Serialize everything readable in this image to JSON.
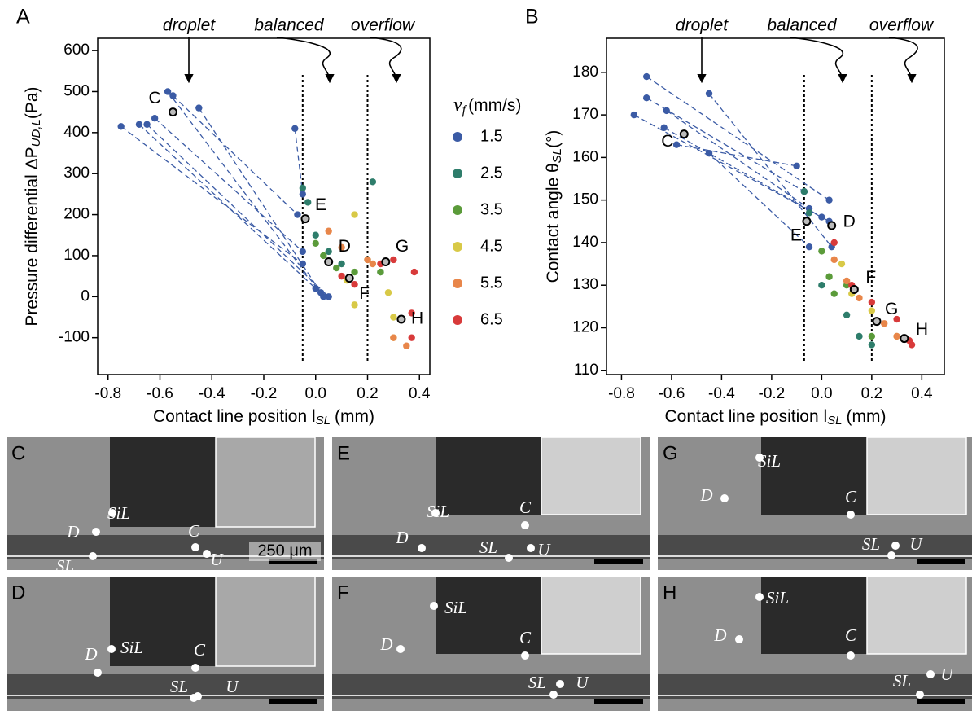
{
  "chart_data": [
    {
      "type": "scatter",
      "panel": "A",
      "xlabel": "Contact line position l",
      "xlabel_sub": "SL",
      "xlabel_unit": "(mm)",
      "ylabel": "Pressure differential ΔP",
      "ylabel_sub": "UD,L",
      "ylabel_unit": "(Pa)",
      "annotations": [
        "droplet",
        "balanced",
        "overflow"
      ],
      "vlines": [
        -0.05,
        0.2
      ],
      "xlim": [
        -0.84,
        0.44
      ],
      "xticks": [
        -0.8,
        -0.6,
        -0.4,
        -0.2,
        {
          "value": 0,
          "label": "0.0"
        },
        0.2,
        0.4
      ],
      "ylim": [
        -190,
        630
      ],
      "yticks": [
        -100,
        0,
        100,
        200,
        300,
        400,
        500,
        600
      ],
      "legend": {
        "title": "v",
        "title_sub": "f",
        "title_unit": "(mm/s)"
      },
      "series": [
        {
          "name": "1.5",
          "color": "#3b5ba5",
          "connect": "pairs",
          "x": [
            -0.75,
            -0.05,
            -0.68,
            0.0,
            -0.65,
            0.05,
            -0.62,
            -0.05,
            -0.57,
            0.03,
            -0.55,
            -0.07,
            -0.45,
            0.02,
            -0.08,
            -0.05
          ],
          "values": [
            415,
            80,
            420,
            20,
            420,
            0,
            435,
            110,
            500,
            0,
            490,
            200,
            460,
            10,
            410,
            250
          ]
        },
        {
          "name": "2.5",
          "color": "#2e7d6b",
          "x": [
            -0.05,
            -0.03,
            0.0,
            0.05,
            0.1,
            0.22,
            0.25
          ],
          "values": [
            265,
            230,
            150,
            110,
            80,
            280,
            60
          ]
        },
        {
          "name": "3.5",
          "color": "#5b9b3a",
          "x": [
            0.0,
            0.03,
            0.08,
            0.15,
            0.25,
            0.2
          ],
          "values": [
            130,
            100,
            70,
            60,
            60,
            90
          ]
        },
        {
          "name": "4.5",
          "color": "#d8c947",
          "x": [
            0.12,
            0.15,
            0.15,
            0.3,
            0.3,
            0.28
          ],
          "values": [
            40,
            200,
            -20,
            -50,
            -100,
            10
          ]
        },
        {
          "name": "5.5",
          "color": "#e8864a",
          "x": [
            0.05,
            0.1,
            0.2,
            0.3,
            0.35,
            0.22
          ],
          "values": [
            160,
            120,
            90,
            -100,
            -120,
            80
          ]
        },
        {
          "name": "6.5",
          "color": "#d83a3a",
          "x": [
            0.1,
            0.15,
            0.25,
            0.3,
            0.38,
            0.37,
            0.37
          ],
          "values": [
            50,
            30,
            80,
            90,
            60,
            -40,
            -100
          ]
        }
      ],
      "highlights": [
        {
          "label": "C",
          "x": -0.55,
          "y": 450
        },
        {
          "label": "E",
          "x": -0.04,
          "y": 190
        },
        {
          "label": "D",
          "x": 0.05,
          "y": 85
        },
        {
          "label": "G",
          "x": 0.27,
          "y": 85
        },
        {
          "label": "F",
          "x": 0.13,
          "y": 45
        },
        {
          "label": "H",
          "x": 0.33,
          "y": -55
        }
      ]
    },
    {
      "type": "scatter",
      "panel": "B",
      "xlabel": "Contact line position l",
      "xlabel_sub": "SL",
      "xlabel_unit": "(mm)",
      "ylabel": "Contact angle  θ",
      "ylabel_sub": "SL",
      "ylabel_unit": "(°)",
      "annotations": [
        "droplet",
        "balanced",
        "overflow"
      ],
      "vlines": [
        -0.07,
        0.2
      ],
      "xlim": [
        -0.86,
        0.49
      ],
      "xticks": [
        -0.8,
        -0.6,
        -0.4,
        -0.2,
        {
          "value": 0,
          "label": "0.0"
        },
        0.2,
        0.4
      ],
      "ylim": [
        109,
        188
      ],
      "yticks": [
        110,
        120,
        130,
        140,
        150,
        160,
        170,
        180
      ],
      "series": [
        {
          "color": "#3b5ba5",
          "connect": "pairs",
          "x": [
            -0.75,
            0.03,
            -0.7,
            0.03,
            -0.7,
            -0.07,
            -0.63,
            0.0,
            -0.62,
            -0.05,
            -0.45,
            0.04,
            -0.58,
            -0.1,
            -0.45,
            -0.05
          ],
          "values": [
            170,
            145,
            179,
            150,
            174,
            152,
            167,
            146,
            171,
            148,
            175,
            139,
            163,
            158,
            161,
            139
          ]
        },
        {
          "color": "#2e7d6b",
          "x": [
            -0.07,
            -0.05,
            0.0,
            0.1,
            0.15,
            0.2
          ],
          "values": [
            152,
            147,
            130,
            123,
            118,
            116
          ]
        },
        {
          "color": "#5b9b3a",
          "x": [
            0.0,
            0.03,
            0.05,
            0.1,
            0.2
          ],
          "values": [
            138,
            132,
            128,
            130,
            118
          ]
        },
        {
          "color": "#d8c947",
          "x": [
            0.08,
            0.12,
            0.2,
            0.3
          ],
          "values": [
            135,
            128,
            124,
            118
          ]
        },
        {
          "color": "#e8864a",
          "x": [
            0.05,
            0.1,
            0.15,
            0.25,
            0.3
          ],
          "values": [
            136,
            131,
            127,
            121,
            118
          ]
        },
        {
          "color": "#d83a3a",
          "x": [
            0.05,
            0.12,
            0.2,
            0.3,
            0.36,
            0.35
          ],
          "values": [
            140,
            130,
            126,
            122,
            116,
            117
          ]
        }
      ],
      "highlights": [
        {
          "label": "C",
          "x": -0.55,
          "y": 165.5
        },
        {
          "label": "D",
          "x": 0.04,
          "y": 144
        },
        {
          "label": "E",
          "x": -0.06,
          "y": 145
        },
        {
          "label": "F",
          "x": 0.13,
          "y": 129
        },
        {
          "label": "G",
          "x": 0.22,
          "y": 121.5
        },
        {
          "label": "H",
          "x": 0.33,
          "y": 117.5
        }
      ]
    }
  ],
  "panels": [
    {
      "label": "C",
      "tags": [
        "D",
        "SiL",
        "C",
        "SL",
        "U"
      ],
      "scale": "250 μm"
    },
    {
      "label": "E",
      "tags": [
        "D",
        "SiL",
        "C",
        "SL",
        "U"
      ]
    },
    {
      "label": "G",
      "tags": [
        "D",
        "SiL",
        "C",
        "SL",
        "U"
      ]
    },
    {
      "label": "D",
      "tags": [
        "D",
        "SiL",
        "C",
        "SL",
        "U"
      ]
    },
    {
      "label": "F",
      "tags": [
        "D",
        "SiL",
        "C",
        "SL",
        "U"
      ]
    },
    {
      "label": "H",
      "tags": [
        "D",
        "SiL",
        "C",
        "SL",
        "U"
      ]
    }
  ]
}
